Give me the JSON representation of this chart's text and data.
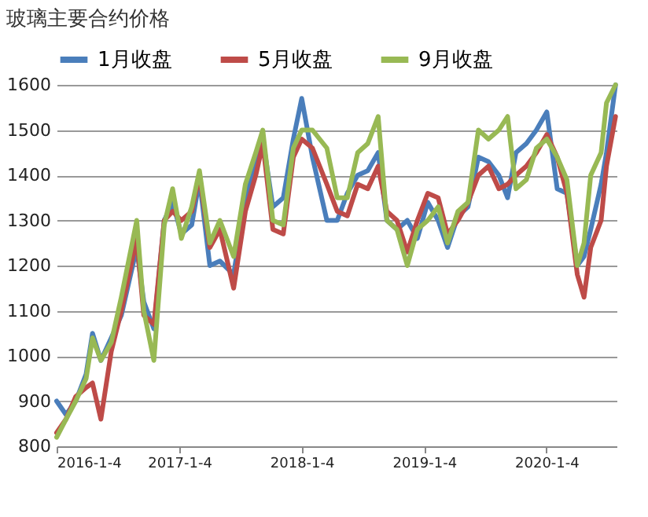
{
  "chart_data": {
    "type": "line",
    "title": "玻璃主要合约价格",
    "x": [
      "2016-01-04",
      "2016-02-01",
      "2016-03-01",
      "2016-04-01",
      "2016-04-20",
      "2016-05-15",
      "2016-06-15",
      "2016-07-15",
      "2016-08-30",
      "2016-09-20",
      "2016-10-20",
      "2016-11-20",
      "2016-12-15",
      "2017-01-10",
      "2017-02-10",
      "2017-03-05",
      "2017-04-05",
      "2017-05-05",
      "2017-06-15",
      "2017-07-20",
      "2017-08-20",
      "2017-09-10",
      "2017-10-10",
      "2017-11-10",
      "2017-12-10",
      "2018-01-04",
      "2018-02-05",
      "2018-03-20",
      "2018-04-20",
      "2018-05-20",
      "2018-06-20",
      "2018-07-20",
      "2018-08-20",
      "2018-09-15",
      "2018-10-15",
      "2018-11-15",
      "2018-12-15",
      "2019-01-15",
      "2019-02-15",
      "2019-03-15",
      "2019-04-15",
      "2019-05-15",
      "2019-06-15",
      "2019-07-15",
      "2019-08-15",
      "2019-09-10",
      "2019-10-05",
      "2019-11-05",
      "2019-12-05",
      "2020-01-05",
      "2020-02-05",
      "2020-03-05",
      "2020-04-05",
      "2020-04-25",
      "2020-05-15",
      "2020-06-15",
      "2020-07-01",
      "2020-07-28"
    ],
    "series": [
      {
        "name": "1月收盘",
        "color": "#4a7ebb",
        "values": [
          900,
          870,
          900,
          960,
          1050,
          990,
          1040,
          1090,
          1240,
          1120,
          1060,
          1300,
          1340,
          1270,
          1290,
          1390,
          1200,
          1210,
          1180,
          1350,
          1420,
          1480,
          1330,
          1350,
          1480,
          1570,
          1440,
          1300,
          1300,
          1360,
          1400,
          1410,
          1450,
          1300,
          1280,
          1300,
          1260,
          1340,
          1300,
          1240,
          1310,
          1330,
          1440,
          1430,
          1400,
          1350,
          1450,
          1470,
          1500,
          1540,
          1370,
          1360,
          1200,
          1220,
          1280,
          1380,
          1450,
          1600
        ]
      },
      {
        "name": "5月收盘",
        "color": "#be4b48",
        "values": [
          830,
          860,
          910,
          930,
          940,
          860,
          1010,
          1100,
          1260,
          1090,
          1070,
          1300,
          1320,
          1300,
          1320,
          1400,
          1240,
          1280,
          1150,
          1320,
          1400,
          1470,
          1280,
          1270,
          1440,
          1480,
          1460,
          1380,
          1320,
          1310,
          1380,
          1370,
          1420,
          1320,
          1300,
          1230,
          1300,
          1360,
          1350,
          1270,
          1300,
          1340,
          1400,
          1420,
          1370,
          1380,
          1400,
          1420,
          1450,
          1490,
          1440,
          1360,
          1180,
          1130,
          1240,
          1300,
          1420,
          1530
        ]
      },
      {
        "name": "9月收盘",
        "color": "#98b954",
        "values": [
          820,
          860,
          900,
          950,
          1040,
          990,
          1030,
          1130,
          1300,
          1100,
          990,
          1290,
          1370,
          1260,
          1330,
          1410,
          1250,
          1300,
          1220,
          1380,
          1450,
          1500,
          1300,
          1290,
          1460,
          1500,
          1500,
          1460,
          1350,
          1350,
          1450,
          1470,
          1530,
          1300,
          1280,
          1200,
          1280,
          1300,
          1330,
          1250,
          1320,
          1340,
          1500,
          1480,
          1500,
          1530,
          1370,
          1390,
          1460,
          1480,
          1440,
          1390,
          1200,
          1250,
          1400,
          1450,
          1560,
          1600
        ]
      }
    ],
    "xlim": [
      "2016-01-04",
      "2020-07-31"
    ],
    "xticks": [
      {
        "value": "2016-01-04",
        "label": "2016-1-4"
      },
      {
        "value": "2017-01-04",
        "label": "2017-1-4"
      },
      {
        "value": "2018-01-04",
        "label": "2018-1-4"
      },
      {
        "value": "2019-01-04",
        "label": "2019-1-4"
      },
      {
        "value": "2020-01-04",
        "label": "2020-1-4"
      }
    ],
    "ylim": [
      800,
      1600
    ],
    "yticks": [
      800,
      900,
      1000,
      1100,
      1200,
      1300,
      1400,
      1500,
      1600
    ],
    "grid": "y",
    "legend": "top",
    "marker": "none",
    "line_style": "solid"
  }
}
